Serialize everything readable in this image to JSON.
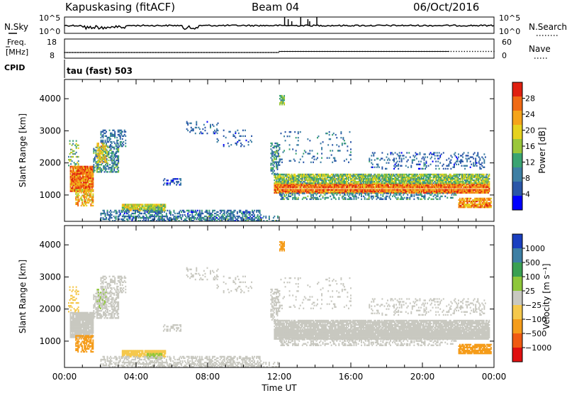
{
  "header": {
    "station": "Kapuskasing (fitACF)",
    "beam": "Beam 04",
    "date": "06/Oct/2016"
  },
  "top_panel": {
    "left_label": "N.Sky",
    "left_ticks": [
      "10^5",
      "10^0"
    ],
    "right_ticks": [
      "10^5",
      "10^0"
    ],
    "right_label": "N.Search"
  },
  "freq_panel": {
    "label_line1": "Freq.",
    "label_line2": "[MHz]",
    "left_ticks": [
      "18",
      "8"
    ],
    "right_ticks": [
      "60",
      "0"
    ],
    "right_label": "Nave"
  },
  "cpid": {
    "label": "CPID",
    "mode": "tau (fast) 503"
  },
  "colors": {
    "power_scale": [
      "#0000ff",
      "#2a56a8",
      "#3d7fa4",
      "#3aa372",
      "#9ac73a",
      "#e6d21e",
      "#f5a41a",
      "#f06a14",
      "#e02010"
    ],
    "velocity_scale": [
      "#e01010",
      "#f05a12",
      "#f59c1a",
      "#f5c84c",
      "#c8c8c0",
      "#8ec73a",
      "#3aa052",
      "#3d7fa4",
      "#1a3fc0"
    ]
  },
  "chart_data": [
    {
      "type": "heatmap",
      "quantity": "power",
      "xlabel": "",
      "ylabel": "Slant Range [km]",
      "x_ticks": [
        "00:00",
        "04:00",
        "08:00",
        "12:00",
        "16:00",
        "20:00",
        "00:00"
      ],
      "xlim_hours": [
        0,
        24
      ],
      "ylim_km": [
        180,
        4600
      ],
      "y_ticks": [
        "4000",
        "3000",
        "2000",
        "1000"
      ],
      "colorbar_label": "Power [dB]",
      "colorbar_ticks": [
        "28",
        "24",
        "20",
        "16",
        "12",
        "8",
        "4"
      ],
      "colorbar_range": [
        0,
        32
      ],
      "grid": false
    },
    {
      "type": "heatmap",
      "quantity": "velocity",
      "xlabel": "Time UT",
      "ylabel": "Slant Range [km]",
      "x_ticks": [
        "00:00",
        "04:00",
        "08:00",
        "12:00",
        "16:00",
        "20:00",
        "00:00"
      ],
      "xlim_hours": [
        0,
        24
      ],
      "ylim_km": [
        180,
        4600
      ],
      "y_ticks": [
        "4000",
        "3000",
        "2000",
        "1000"
      ],
      "colorbar_label": "Velocity [m s⁻¹]",
      "colorbar_ticks": [
        "1000",
        "500",
        "100",
        "25",
        "−25",
        "−100",
        "−500",
        "−1000"
      ],
      "grid": false
    }
  ],
  "echo_regions": [
    {
      "t0": 0.3,
      "t1": 1.6,
      "r0": 1100,
      "r1": 1900,
      "dens": 0.95,
      "p": 26,
      "v": 0,
      "jit": 6
    },
    {
      "t0": 0.6,
      "t1": 1.6,
      "r0": 650,
      "r1": 1150,
      "dens": 0.6,
      "p": 22,
      "v": -400,
      "jit": 6
    },
    {
      "t0": 0.2,
      "t1": 0.8,
      "r0": 1900,
      "r1": 2700,
      "dens": 0.25,
      "p": 14,
      "v": -60,
      "jit": 6
    },
    {
      "t0": 1.6,
      "t1": 3.0,
      "r0": 1700,
      "r1": 2500,
      "dens": 0.55,
      "p": 10,
      "v": 0,
      "jit": 6
    },
    {
      "t0": 2.0,
      "t1": 3.4,
      "r0": 2500,
      "r1": 3000,
      "dens": 0.45,
      "p": 8,
      "v": 0,
      "jit": 4
    },
    {
      "t0": 1.8,
      "t1": 2.4,
      "r0": 2000,
      "r1": 2600,
      "dens": 0.5,
      "p": 20,
      "v": 20,
      "jit": 5
    },
    {
      "t0": 3.2,
      "t1": 5.6,
      "r0": 500,
      "r1": 700,
      "dens": 0.9,
      "p": 18,
      "v": -60,
      "jit": 5
    },
    {
      "t0": 4.6,
      "t1": 5.4,
      "r0": 450,
      "r1": 600,
      "dens": 0.8,
      "p": 14,
      "v": 60,
      "jit": 4
    },
    {
      "t0": 2.0,
      "t1": 11.0,
      "r0": 180,
      "r1": 520,
      "dens": 0.45,
      "p": 8,
      "v": 0,
      "jit": 5
    },
    {
      "t0": 5.5,
      "t1": 6.5,
      "r0": 1300,
      "r1": 1500,
      "dens": 0.4,
      "p": 6,
      "v": 0,
      "jit": 4
    },
    {
      "t0": 6.8,
      "t1": 8.6,
      "r0": 2900,
      "r1": 3300,
      "dens": 0.22,
      "p": 7,
      "v": 0,
      "jit": 4
    },
    {
      "t0": 8.5,
      "t1": 10.5,
      "r0": 2500,
      "r1": 3000,
      "dens": 0.1,
      "p": 6,
      "v": 0,
      "jit": 4
    },
    {
      "t0": 11.5,
      "t1": 12.0,
      "r0": 1600,
      "r1": 2600,
      "dens": 0.45,
      "p": 10,
      "v": 0,
      "jit": 5
    },
    {
      "t0": 11.7,
      "t1": 23.7,
      "r0": 1050,
      "r1": 1350,
      "dens": 0.97,
      "p": 26,
      "v": 0,
      "jit": 6
    },
    {
      "t0": 11.7,
      "t1": 23.7,
      "r0": 1350,
      "r1": 1650,
      "dens": 0.85,
      "p": 15,
      "v": 0,
      "jit": 6
    },
    {
      "t0": 12.0,
      "t1": 22.0,
      "r0": 850,
      "r1": 1050,
      "dens": 0.35,
      "p": 10,
      "v": 0,
      "jit": 5
    },
    {
      "t0": 17.0,
      "t1": 23.5,
      "r0": 1800,
      "r1": 2300,
      "dens": 0.2,
      "p": 7,
      "v": 0,
      "jit": 4
    },
    {
      "t0": 22.0,
      "t1": 23.8,
      "r0": 600,
      "r1": 900,
      "dens": 0.85,
      "p": 24,
      "v": -120,
      "jit": 6
    },
    {
      "t0": 12.0,
      "t1": 12.3,
      "r0": 3800,
      "r1": 4100,
      "dens": 0.6,
      "p": 14,
      "v": -400,
      "jit": 4
    },
    {
      "t0": 12.0,
      "t1": 16.0,
      "r0": 2000,
      "r1": 3000,
      "dens": 0.06,
      "p": 8,
      "v": 0,
      "jit": 4
    },
    {
      "t0": 3.6,
      "t1": 12.0,
      "r0": 180,
      "r1": 350,
      "dens": 0.25,
      "p": 10,
      "v": 0,
      "jit": 5
    }
  ]
}
